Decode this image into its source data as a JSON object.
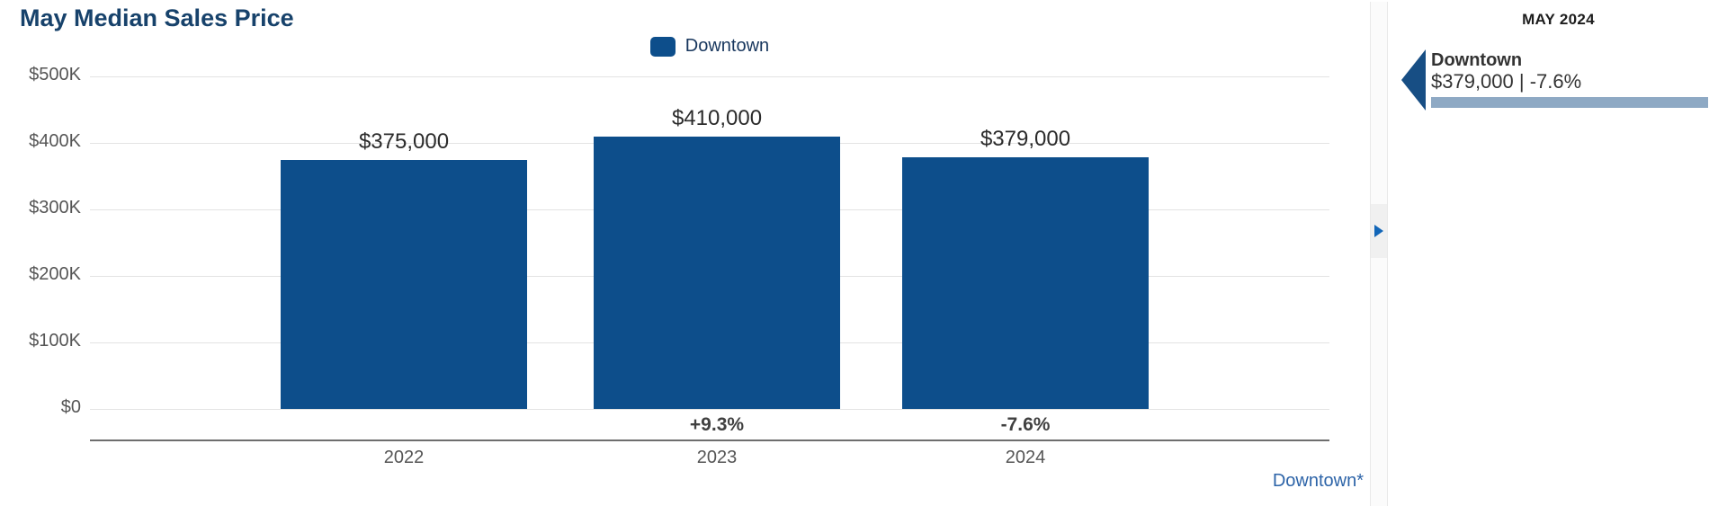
{
  "title": "May Median Sales Price",
  "legend": {
    "items": [
      {
        "label": "Downtown",
        "color": "#0d4e8b"
      }
    ]
  },
  "chart_data": {
    "type": "bar",
    "title": "May Median Sales Price",
    "categories": [
      "2022",
      "2023",
      "2024"
    ],
    "series": [
      {
        "name": "Downtown",
        "color": "#0d4e8b",
        "values": [
          375000,
          410000,
          379000
        ]
      }
    ],
    "value_labels": [
      "$375,000",
      "$410,000",
      "$379,000"
    ],
    "pct_change_labels": [
      "",
      "+9.3%",
      "-7.6%"
    ],
    "ylim": [
      0,
      500000
    ],
    "ytick_values": [
      500000,
      400000,
      300000,
      200000,
      100000,
      0
    ],
    "ytick_labels": [
      "$500K",
      "$400K",
      "$300K",
      "$200K",
      "$100K",
      "$0"
    ],
    "grid": true,
    "legend_position": "top"
  },
  "footnote": "Downtown*",
  "icons": {
    "expand_panel": "right-triangle",
    "panel_marker": "left-triangle"
  },
  "side_panel": {
    "header": "MAY 2024",
    "items": [
      {
        "name": "Downtown",
        "value_text": "$379,000 | -7.6%",
        "bar_color": "#8ea9c4",
        "marker_color": "#174e84"
      }
    ]
  },
  "colors": {
    "bar": "#0d4e8b",
    "title_navy": "#17426b",
    "legend_navy": "#17365d",
    "gridline": "#e3e3e3",
    "axis_line": "#6e6e6e",
    "footnote_blue": "#2d64a8",
    "panel_bar_blue": "#8ea9c4",
    "panel_marker_blue": "#174e84",
    "expand_arrow_blue": "#1266b8"
  }
}
